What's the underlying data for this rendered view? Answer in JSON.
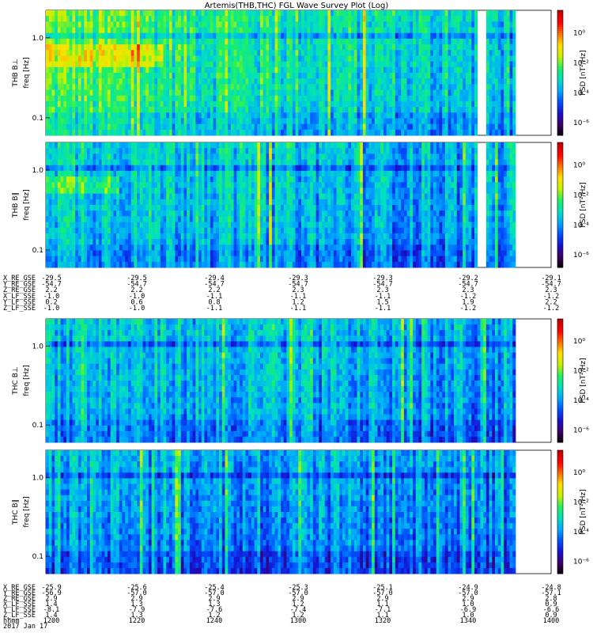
{
  "title": "Artemis(THB,THC) FGL Wave Survey Plot (Log)",
  "chart_data": [
    {
      "type": "heatmap",
      "panel": "THB B⊥",
      "ylabel": [
        "THB B⊥",
        "freq [Hz]"
      ],
      "yscale": "log",
      "yticks": [
        "1.0",
        "0.1"
      ],
      "colorbar": {
        "label": "PSD [nT²/Hz]",
        "ticks": [
          "10⁰",
          "10⁻²",
          "10⁻⁴",
          "10⁻⁶"
        ]
      },
      "dominant_level": "green-cyan, decreasing toward later times",
      "data_gap": "near 13:46 UT"
    },
    {
      "type": "heatmap",
      "panel": "THB B∥",
      "ylabel": [
        "THB B∥",
        "freq [Hz]"
      ],
      "yscale": "log",
      "yticks": [
        "1.0",
        "0.1"
      ],
      "colorbar": {
        "label": "PSD [nT²/Hz]",
        "ticks": [
          "10⁰",
          "10⁻²",
          "10⁻⁴",
          "10⁻⁶"
        ]
      },
      "dominant_level": "cyan-blue",
      "data_gap": "near 13:46 UT"
    },
    {
      "type": "heatmap",
      "panel": "THC B⊥",
      "ylabel": [
        "THC B⊥",
        "freq [Hz]"
      ],
      "yscale": "log",
      "yticks": [
        "1.0",
        "0.1"
      ],
      "colorbar": {
        "label": "PSD [nT²/Hz]",
        "ticks": [
          "10⁰",
          "10⁻²",
          "10⁻⁴",
          "10⁻⁶"
        ]
      },
      "dominant_level": "cyan-blue"
    },
    {
      "type": "heatmap",
      "panel": "THC B∥",
      "ylabel": [
        "THC B∥",
        "freq [Hz]"
      ],
      "yscale": "log",
      "yticks": [
        "1.0",
        "0.1"
      ],
      "colorbar": {
        "label": "PSD [nT²/Hz]",
        "ticks": [
          "10⁰",
          "10⁻²",
          "10⁻⁴",
          "10⁻⁶"
        ]
      },
      "dominant_level": "blue"
    }
  ],
  "colorscale": [
    "#000000",
    "#3b0060",
    "#1a0fcc",
    "#0050ff",
    "#00a8ff",
    "#00e0c0",
    "#20f060",
    "#c8f000",
    "#ffe000",
    "#ff7000",
    "#ff0000",
    "#c00000"
  ],
  "thb_ephem": {
    "labels": [
      "X_RE_GSE",
      "Y_RE_GSE",
      "Z_RE_GSE",
      "X_LF_SSE",
      "Y_LF_SSE",
      "Z_LF_SSE"
    ],
    "columns": [
      [
        "-29.5",
        "-54.7",
        "2.2",
        "-1.0",
        "0.2",
        "-1.0"
      ],
      [
        "-29.5",
        "-54.7",
        "2.2",
        "-1.0",
        "0.6",
        "-1.0"
      ],
      [
        "-29.4",
        "-54.7",
        "2.2",
        "-1.1",
        "0.8",
        "-1.1"
      ],
      [
        "-29.3",
        "-54.7",
        "2.3",
        "-1.1",
        "1.2",
        "-1.1"
      ],
      [
        "-29.3",
        "-54.7",
        "2.3",
        "-1.1",
        "1.5",
        "-1.1"
      ],
      [
        "-29.2",
        "-54.7",
        "2.3",
        "-1.2",
        "1.9",
        "-1.2"
      ],
      [
        "-29.1",
        "-54.7",
        "2.3",
        "-1.2",
        "2.2",
        "-1.2"
      ]
    ]
  },
  "thc_ephem": {
    "labels": [
      "X_RE_GSE",
      "Y_RE_GSE",
      "Z_RE_GSE",
      "X_LF_SSE",
      "Y_LF_SSE",
      "Z_LF_SSE",
      "hhmm",
      "2017 Jan 17"
    ],
    "columns": [
      [
        "-25.9",
        "-56.9",
        "2.9",
        "1.4",
        "-8.1",
        "1.4",
        "1200"
      ],
      [
        "-25.6",
        "-57.0",
        "2.9",
        "1.3",
        "-7.9",
        "1.3",
        "1220"
      ],
      [
        "-25.4",
        "-57.0",
        "2.9",
        "1.3",
        "-7.6",
        "1.2",
        "1240"
      ],
      [
        "-25.3",
        "-57.0",
        "2.9",
        "1.2",
        "-7.4",
        "1.2",
        "1300"
      ],
      [
        "-25.1",
        "-57.0",
        "2.9",
        "1.1",
        "-7.1",
        "1.1",
        "1320"
      ],
      [
        "-24.9",
        "-57.0",
        "2.9",
        "1.0",
        "-6.9",
        "1.0",
        "1340"
      ],
      [
        "-24.8",
        "-57.1",
        "2.8",
        "0.9",
        "-6.6",
        "0.9",
        "1400"
      ]
    ]
  }
}
